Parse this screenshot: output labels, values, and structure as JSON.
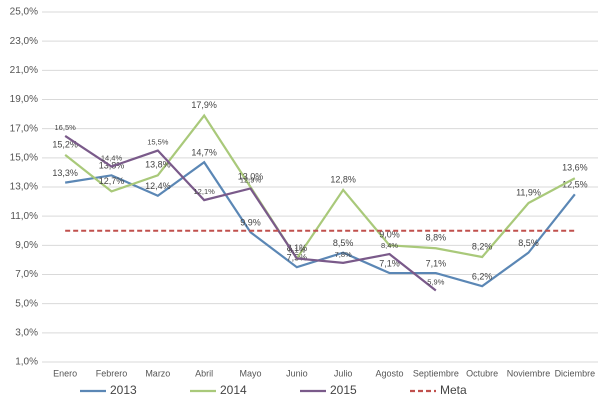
{
  "chart_data": {
    "type": "line",
    "categories": [
      "Enero",
      "Febrero",
      "Marzo",
      "Abril",
      "Mayo",
      "Junio",
      "Julio",
      "Agosto",
      "Septiembre",
      "Octubre",
      "Noviembre",
      "Diciembre"
    ],
    "series": [
      {
        "name": "2013",
        "color": "#5b87b5",
        "values": [
          13.3,
          13.8,
          12.4,
          14.7,
          9.9,
          7.5,
          8.5,
          7.1,
          7.1,
          6.2,
          8.5,
          12.5
        ],
        "value_labels": [
          "13,3%",
          "13,8%",
          "12,4%",
          "14,7%",
          "9,9%",
          "7,5%",
          "8,5%",
          "7,1%",
          "7,1%",
          "6,2%",
          "8,5%",
          "12,5%"
        ]
      },
      {
        "name": "2014",
        "color": "#a9c97a",
        "values": [
          15.2,
          12.7,
          13.8,
          17.9,
          13.0,
          8.1,
          12.8,
          9.0,
          8.8,
          8.2,
          11.9,
          13.6
        ],
        "value_labels": [
          "15,2%",
          "12,7%",
          "13,8%",
          "17,9%",
          "13,0%",
          "8,1%",
          "12,8%",
          "9,0%",
          "8,8%",
          "8,2%",
          "11,9%",
          "13,6%"
        ]
      },
      {
        "name": "2015",
        "color": "#7a5a8a",
        "values": [
          16.5,
          14.4,
          15.5,
          12.1,
          12.9,
          8.1,
          7.8,
          8.4,
          5.9,
          null,
          null,
          null
        ],
        "value_labels": [
          "16,5%",
          "14,4%",
          "15,5%",
          "12,1%",
          "12,9%",
          "8,1%",
          "7,8%",
          "8,4%",
          "5,9%",
          null,
          null,
          null
        ]
      },
      {
        "name": "Meta",
        "color": "#c0504d",
        "dashed": true,
        "values": [
          10,
          10,
          10,
          10,
          10,
          10,
          10,
          10,
          10,
          10,
          10,
          10
        ]
      }
    ],
    "ylim": [
      1,
      25
    ],
    "yticks": [
      {
        "value": 1,
        "label": "1,0%"
      },
      {
        "value": 3,
        "label": "3,0%"
      },
      {
        "value": 5,
        "label": "5,0%"
      },
      {
        "value": 7,
        "label": "7,0%"
      },
      {
        "value": 9,
        "label": "9,0%"
      },
      {
        "value": 11,
        "label": "11,0%"
      },
      {
        "value": 13,
        "label": "13,0%"
      },
      {
        "value": 15,
        "label": "15,0%"
      },
      {
        "value": 17,
        "label": "17,0%"
      },
      {
        "value": 19,
        "label": "19,0%"
      },
      {
        "value": 21,
        "label": "21,0%"
      },
      {
        "value": 23,
        "label": "23,0%"
      },
      {
        "value": 25,
        "label": "25,0%"
      }
    ],
    "grid": true,
    "legend": "bottom"
  }
}
